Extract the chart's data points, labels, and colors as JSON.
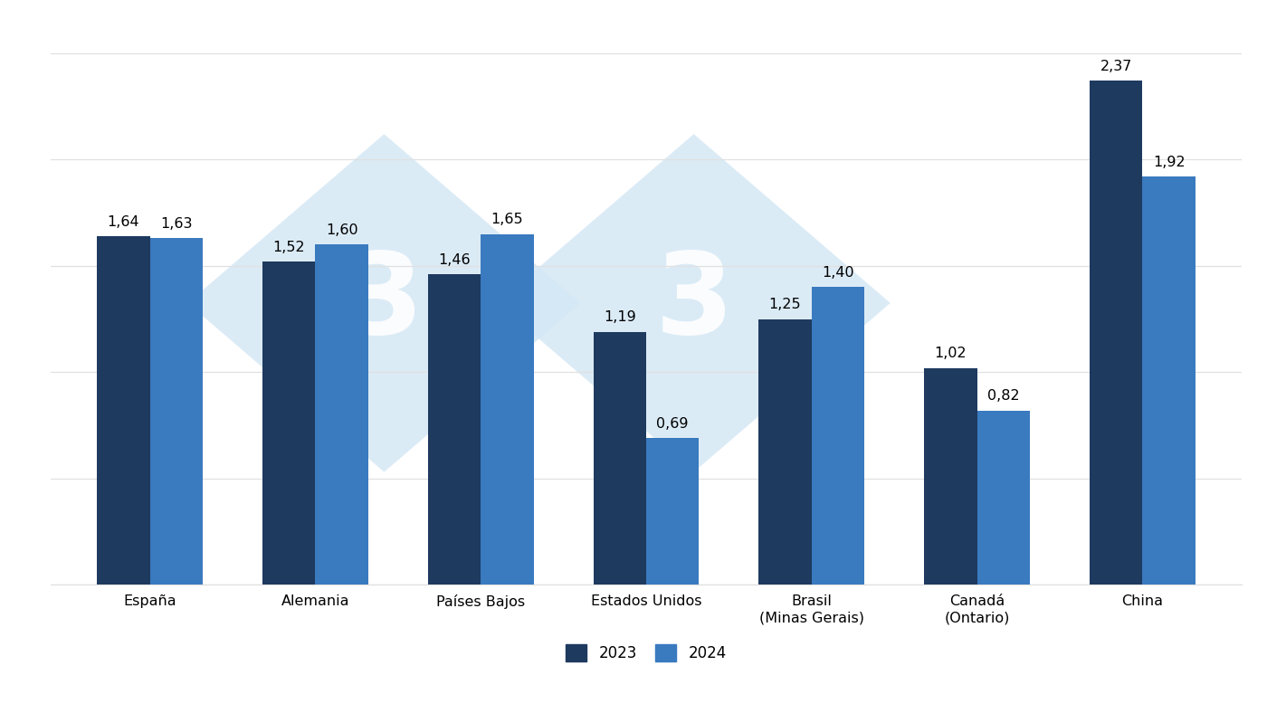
{
  "categories": [
    "España",
    "Alemania",
    "Países Bajos",
    "Estados Unidos",
    "Brasil\n(Minas Gerais)",
    "Canadá\n(Ontario)",
    "China"
  ],
  "values_2023": [
    1.64,
    1.52,
    1.46,
    1.19,
    1.25,
    1.02,
    2.37
  ],
  "values_2024": [
    1.63,
    1.6,
    1.65,
    0.69,
    1.4,
    0.82,
    1.92
  ],
  "color_2023": "#1e3a5f",
  "color_2024": "#3a7abf",
  "bar_width": 0.32,
  "ylim": [
    0,
    2.65
  ],
  "yticks": [
    0.0,
    0.5,
    1.0,
    1.5,
    2.0,
    2.5
  ],
  "legend_labels": [
    "2023",
    "2024"
  ],
  "background_color": "#ffffff",
  "grid_color": "#e0e0e0",
  "tick_fontsize": 11.5,
  "legend_fontsize": 12,
  "value_fontsize": 11.5,
  "watermark_color": "#d5e8f5",
  "watermark_alpha": 0.85
}
